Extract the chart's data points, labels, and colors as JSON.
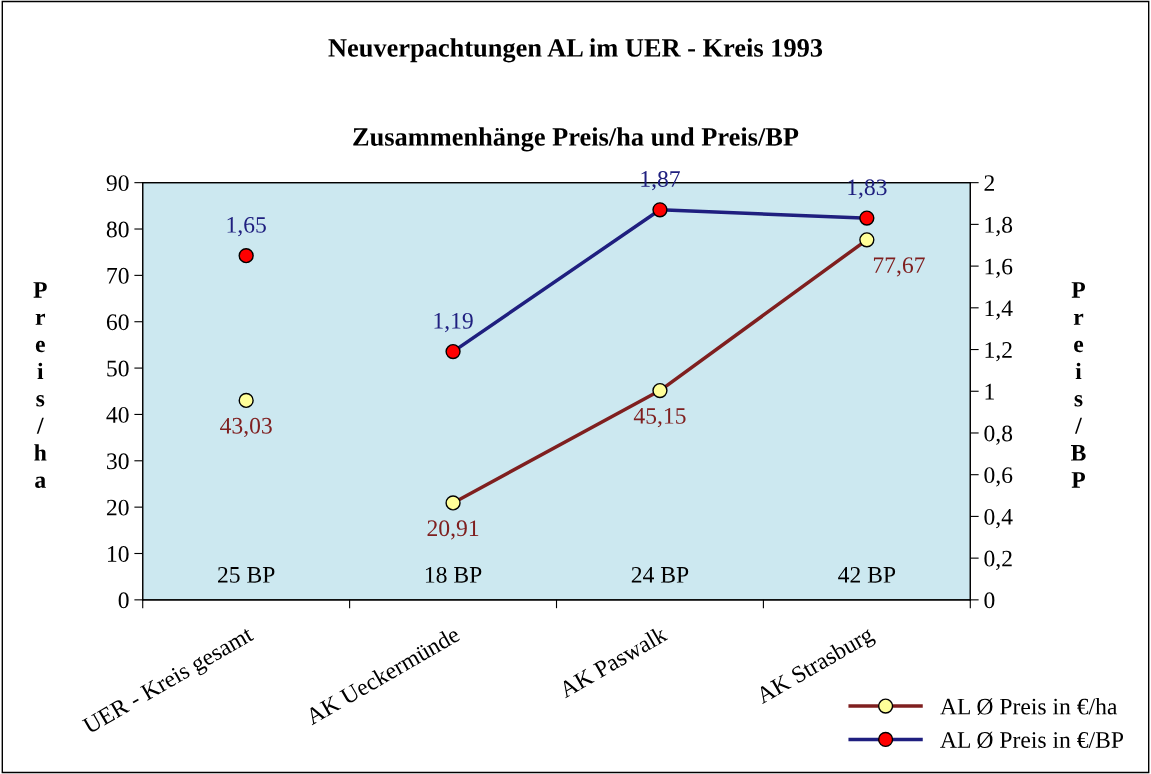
{
  "chart_data": {
    "type": "line",
    "title": "Neuverpachtungen AL im UER - Kreis 1993",
    "subtitle": "Zusammenhänge Preis/ha und Preis/BP",
    "ylabel": "Preis/ha",
    "y2label": "Preis/BP",
    "categories": [
      "UER - Kreis gesamt",
      "AK Ueckermünde",
      "AK Paswalk",
      "AK Strasburg"
    ],
    "series": [
      {
        "name": "AL Ø Preis in €/ha",
        "color": "#7f1f1f",
        "colors": [
          null,
          "#ffff99",
          "#ffff99",
          "#ffff99"
        ],
        "values": [
          null,
          20.91,
          45.15,
          77.67
        ],
        "value_labels": [
          null,
          "20,91",
          "45,15",
          "77,67"
        ]
      },
      {
        "name": "AL Ø Preis in €/BP",
        "axis": "y2",
        "color": "#1f1f7f",
        "colors": [
          null,
          "#ff0000",
          "#ff0000",
          "#ff0000"
        ],
        "values": [
          null,
          1.19,
          1.87,
          1.83
        ],
        "value_labels": [
          null,
          "1,19",
          "1,87",
          "1,83"
        ]
      },
      {
        "color": "#7f1f1f",
        "colors": [
          "#ffff99",
          null,
          null,
          null
        ],
        "values": [
          43.03,
          null,
          null,
          null
        ],
        "value_labels": [
          "43,03",
          null,
          null,
          null
        ]
      },
      {
        "axis": "y2",
        "color": "#1f1f7f",
        "colors": [
          "#ff0000",
          null,
          null,
          null
        ],
        "values": [
          1.65,
          null,
          null,
          null
        ],
        "value_labels": [
          "1,65",
          null,
          null,
          null
        ]
      }
    ],
    "ylim": [
      0,
      90
    ],
    "yticks": [
      0,
      10,
      20,
      30,
      40,
      50,
      60,
      70,
      80,
      90
    ],
    "y2lim": [
      0,
      2
    ],
    "y2ticks": [
      0,
      {
        "value": 0.2,
        "label": "0,2"
      },
      {
        "value": 0.4,
        "label": "0,4"
      },
      {
        "value": 0.6,
        "label": "0,6"
      },
      {
        "value": 0.8,
        "label": "0,8"
      },
      1,
      {
        "value": 1.2,
        "label": "1,2"
      },
      {
        "value": 1.4,
        "label": "1,4"
      },
      {
        "value": 1.6,
        "label": "1,6"
      },
      {
        "value": 1.8,
        "label": "1,8"
      },
      2
    ],
    "annotations": [
      "25 BP",
      "18 BP",
      "24 BP",
      "42 BP"
    ],
    "marker": "circle",
    "legend": "bottom right",
    "grid": false
  }
}
